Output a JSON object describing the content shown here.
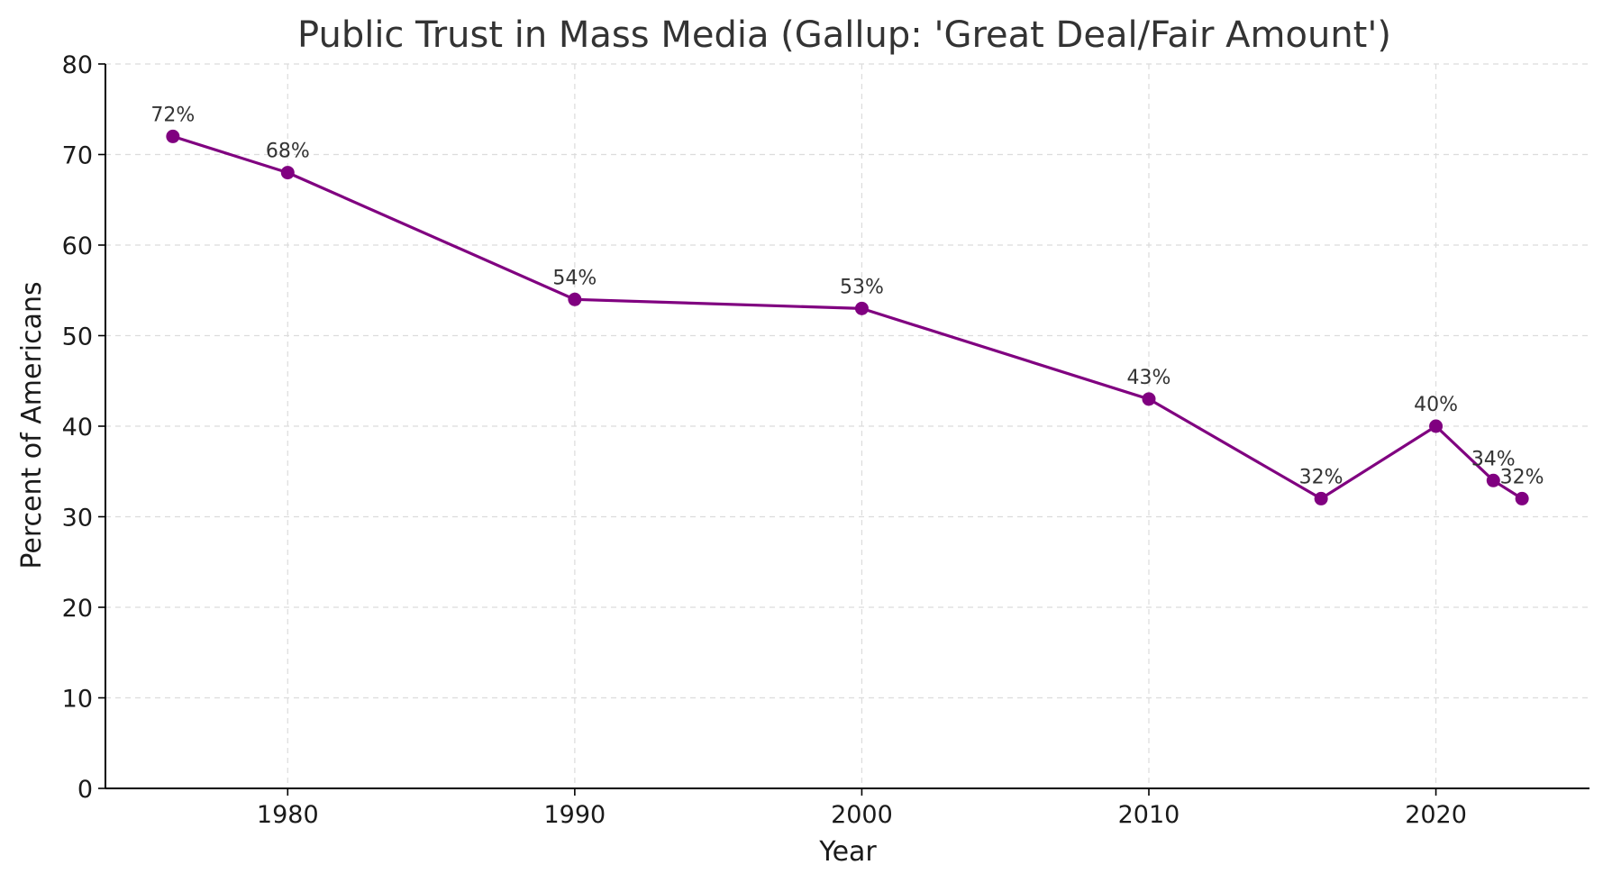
{
  "chart_data": {
    "type": "line",
    "title": "Public Trust in Mass Media (Gallup: 'Great Deal/Fair Amount')",
    "xlabel": "Year",
    "ylabel": "Percent of Americans",
    "x": [
      1976,
      1980,
      1990,
      2000,
      2010,
      2016,
      2020,
      2022,
      2023
    ],
    "values": [
      72,
      68,
      54,
      53,
      43,
      32,
      40,
      34,
      32
    ],
    "data_labels": [
      "72%",
      "68%",
      "54%",
      "53%",
      "43%",
      "32%",
      "40%",
      "34%",
      "32%"
    ],
    "xlim": [
      1973.65,
      2025.35
    ],
    "ylim": [
      0,
      80
    ],
    "xticks": [
      1980,
      1990,
      2000,
      2010,
      2020
    ],
    "yticks": [
      0,
      10,
      20,
      30,
      40,
      50,
      60,
      70,
      80
    ],
    "grid": true,
    "line_color": "#800080"
  }
}
